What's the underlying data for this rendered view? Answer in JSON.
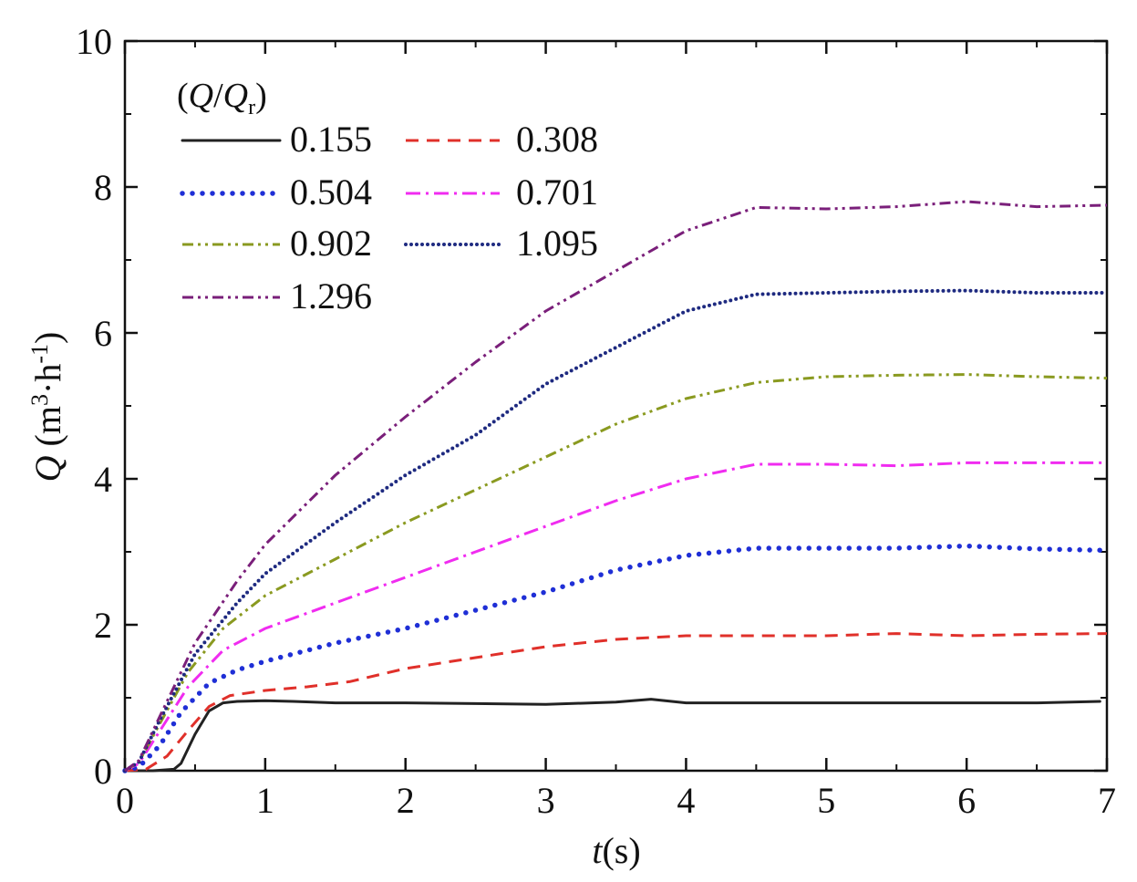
{
  "chart_data": {
    "type": "line",
    "title": "",
    "xlabel": {
      "var": "t",
      "unit": "(s)"
    },
    "ylabel": {
      "var": "Q",
      "unit_pre": " (m",
      "sup1": "3",
      "mid": "·h",
      "sup2": "-1",
      "unit_post": ")"
    },
    "xlim": [
      0,
      7
    ],
    "ylim": [
      0,
      10
    ],
    "xticks": [
      "0",
      "1",
      "2",
      "3",
      "4",
      "5",
      "6",
      "7"
    ],
    "yticks": [
      "0",
      "2",
      "4",
      "6",
      "8",
      "10"
    ],
    "grid": false,
    "legend": {
      "position": "top-left",
      "title_open": "(",
      "title_q": "Q",
      "title_slash": "/",
      "title_q2": "Q",
      "title_sub": "r",
      "title_close": ")"
    },
    "series": [
      {
        "name": "0.155",
        "color": "#222222",
        "style": "solid",
        "points": [
          [
            0,
            0
          ],
          [
            0.2,
            0
          ],
          [
            0.35,
            0.02
          ],
          [
            0.4,
            0.1
          ],
          [
            0.5,
            0.5
          ],
          [
            0.6,
            0.82
          ],
          [
            0.7,
            0.93
          ],
          [
            0.8,
            0.95
          ],
          [
            1.0,
            0.96
          ],
          [
            1.2,
            0.95
          ],
          [
            1.5,
            0.93
          ],
          [
            2.0,
            0.93
          ],
          [
            2.5,
            0.92
          ],
          [
            3.0,
            0.91
          ],
          [
            3.5,
            0.94
          ],
          [
            3.75,
            0.98
          ],
          [
            4.0,
            0.93
          ],
          [
            4.5,
            0.93
          ],
          [
            5.0,
            0.93
          ],
          [
            5.5,
            0.93
          ],
          [
            6.0,
            0.93
          ],
          [
            6.5,
            0.93
          ],
          [
            6.95,
            0.95
          ]
        ]
      },
      {
        "name": "0.308",
        "color": "#e0302a",
        "style": "dashed",
        "points": [
          [
            0,
            0
          ],
          [
            0.15,
            0.02
          ],
          [
            0.3,
            0.2
          ],
          [
            0.45,
            0.55
          ],
          [
            0.6,
            0.88
          ],
          [
            0.75,
            1.03
          ],
          [
            1.0,
            1.1
          ],
          [
            1.3,
            1.15
          ],
          [
            1.6,
            1.22
          ],
          [
            2.0,
            1.4
          ],
          [
            2.5,
            1.55
          ],
          [
            3.0,
            1.7
          ],
          [
            3.5,
            1.8
          ],
          [
            4.0,
            1.85
          ],
          [
            4.5,
            1.85
          ],
          [
            5.0,
            1.85
          ],
          [
            5.5,
            1.88
          ],
          [
            6.0,
            1.85
          ],
          [
            6.5,
            1.87
          ],
          [
            7.0,
            1.88
          ]
        ]
      },
      {
        "name": "0.504",
        "color": "#1f2fd6",
        "style": "dotted",
        "points": [
          [
            0,
            0
          ],
          [
            0.1,
            0.05
          ],
          [
            0.25,
            0.35
          ],
          [
            0.4,
            0.8
          ],
          [
            0.6,
            1.2
          ],
          [
            0.8,
            1.38
          ],
          [
            1.0,
            1.5
          ],
          [
            1.5,
            1.75
          ],
          [
            2.0,
            1.95
          ],
          [
            2.5,
            2.2
          ],
          [
            3.0,
            2.45
          ],
          [
            3.5,
            2.75
          ],
          [
            4.0,
            2.95
          ],
          [
            4.5,
            3.05
          ],
          [
            5.0,
            3.05
          ],
          [
            5.5,
            3.05
          ],
          [
            6.0,
            3.08
          ],
          [
            6.5,
            3.04
          ],
          [
            7.0,
            3.02
          ]
        ]
      },
      {
        "name": "0.701",
        "color": "#f02cf0",
        "style": "dashdot",
        "points": [
          [
            0,
            0
          ],
          [
            0.1,
            0.1
          ],
          [
            0.25,
            0.55
          ],
          [
            0.45,
            1.15
          ],
          [
            0.7,
            1.65
          ],
          [
            1.0,
            1.95
          ],
          [
            1.5,
            2.3
          ],
          [
            2.0,
            2.65
          ],
          [
            2.5,
            3.0
          ],
          [
            3.0,
            3.35
          ],
          [
            3.5,
            3.7
          ],
          [
            4.0,
            4.0
          ],
          [
            4.5,
            4.2
          ],
          [
            5.0,
            4.2
          ],
          [
            5.5,
            4.18
          ],
          [
            6.0,
            4.22
          ],
          [
            6.5,
            4.22
          ],
          [
            7.0,
            4.22
          ]
        ]
      },
      {
        "name": "0.902",
        "color": "#8a9a20",
        "style": "dashdotdot",
        "points": [
          [
            0,
            0
          ],
          [
            0.1,
            0.12
          ],
          [
            0.25,
            0.65
          ],
          [
            0.45,
            1.35
          ],
          [
            0.7,
            1.95
          ],
          [
            1.0,
            2.4
          ],
          [
            1.5,
            2.9
          ],
          [
            2.0,
            3.4
          ],
          [
            2.5,
            3.85
          ],
          [
            3.0,
            4.3
          ],
          [
            3.5,
            4.75
          ],
          [
            4.0,
            5.1
          ],
          [
            4.5,
            5.32
          ],
          [
            5.0,
            5.4
          ],
          [
            5.5,
            5.42
          ],
          [
            6.0,
            5.43
          ],
          [
            6.5,
            5.4
          ],
          [
            7.0,
            5.38
          ]
        ]
      },
      {
        "name": "1.095",
        "color": "#1e2a80",
        "style": "shortdot",
        "points": [
          [
            0,
            0
          ],
          [
            0.1,
            0.12
          ],
          [
            0.25,
            0.7
          ],
          [
            0.5,
            1.6
          ],
          [
            0.8,
            2.3
          ],
          [
            1.0,
            2.7
          ],
          [
            1.5,
            3.4
          ],
          [
            2.0,
            4.05
          ],
          [
            2.5,
            4.6
          ],
          [
            3.0,
            5.3
          ],
          [
            3.5,
            5.8
          ],
          [
            4.0,
            6.3
          ],
          [
            4.5,
            6.53
          ],
          [
            5.0,
            6.55
          ],
          [
            5.5,
            6.57
          ],
          [
            6.0,
            6.58
          ],
          [
            6.5,
            6.55
          ],
          [
            7.0,
            6.55
          ]
        ]
      },
      {
        "name": "1.296",
        "color": "#7a1f7a",
        "style": "dashdotdot",
        "points": [
          [
            0,
            0
          ],
          [
            0.1,
            0.14
          ],
          [
            0.25,
            0.75
          ],
          [
            0.5,
            1.75
          ],
          [
            0.8,
            2.6
          ],
          [
            1.0,
            3.1
          ],
          [
            1.5,
            4.05
          ],
          [
            2.0,
            4.85
          ],
          [
            2.5,
            5.6
          ],
          [
            3.0,
            6.3
          ],
          [
            3.5,
            6.85
          ],
          [
            4.0,
            7.4
          ],
          [
            4.5,
            7.72
          ],
          [
            5.0,
            7.7
          ],
          [
            5.5,
            7.73
          ],
          [
            6.0,
            7.8
          ],
          [
            6.5,
            7.73
          ],
          [
            7.0,
            7.75
          ]
        ]
      }
    ]
  }
}
